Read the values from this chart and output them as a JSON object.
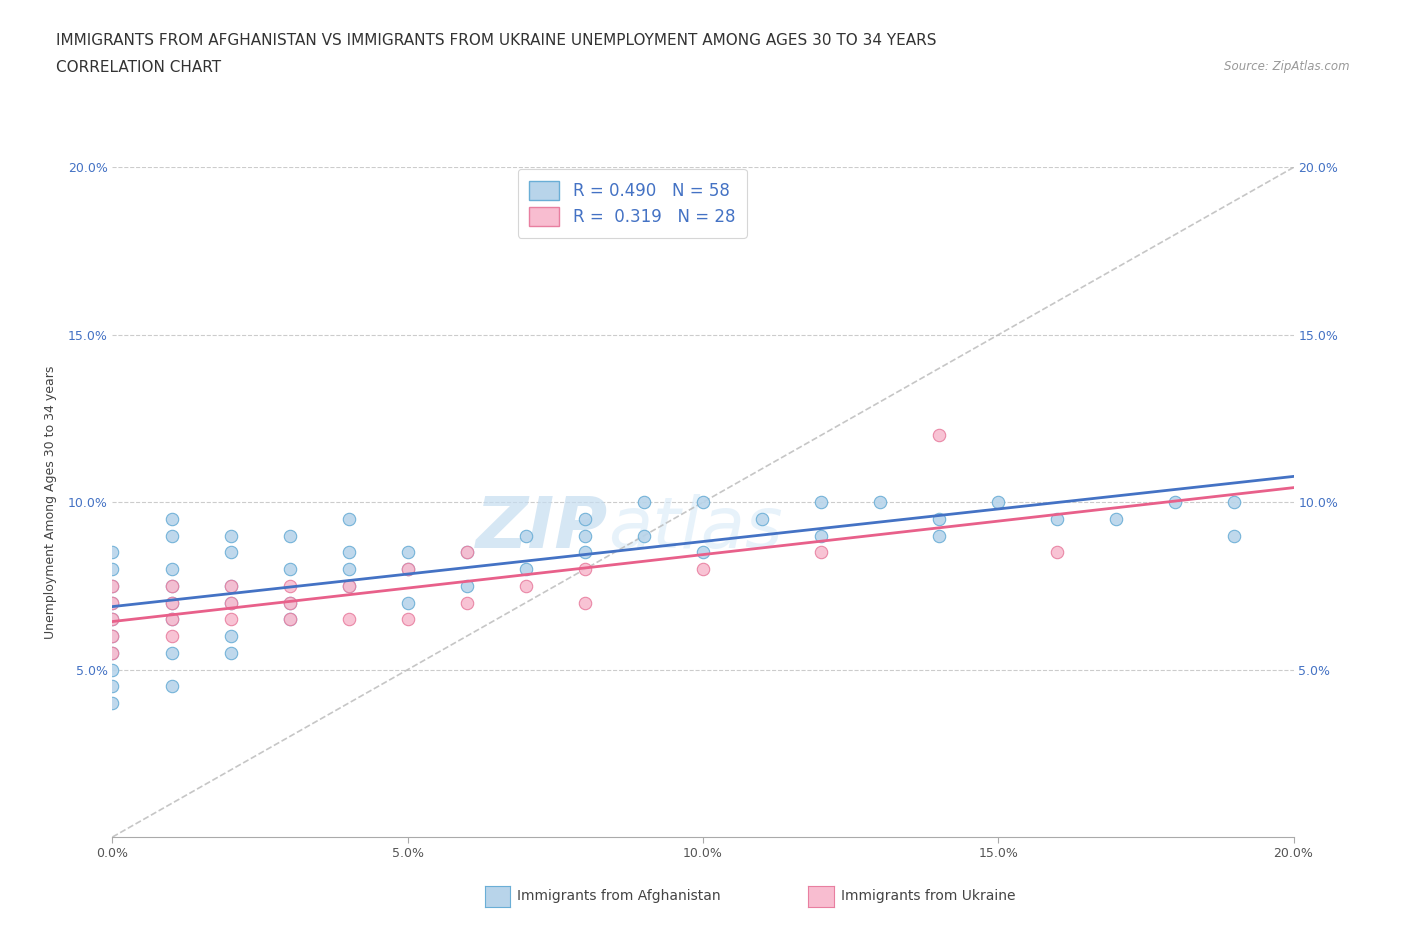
{
  "title_line1": "IMMIGRANTS FROM AFGHANISTAN VS IMMIGRANTS FROM UKRAINE UNEMPLOYMENT AMONG AGES 30 TO 34 YEARS",
  "title_line2": "CORRELATION CHART",
  "source_text": "Source: ZipAtlas.com",
  "ylabel": "Unemployment Among Ages 30 to 34 years",
  "xlim": [
    0.0,
    0.2
  ],
  "ylim": [
    0.0,
    0.2
  ],
  "xticks": [
    0.0,
    0.05,
    0.1,
    0.15,
    0.2
  ],
  "yticks": [
    0.05,
    0.1,
    0.15,
    0.2
  ],
  "xtick_labels": [
    "0.0%",
    "5.0%",
    "10.0%",
    "15.0%",
    "20.0%"
  ],
  "ytick_labels": [
    "5.0%",
    "10.0%",
    "15.0%",
    "20.0%"
  ],
  "afghanistan_color": "#b8d4ea",
  "ukraine_color": "#f8bdd0",
  "afghanistan_edge": "#6aaed6",
  "ukraine_edge": "#e87fa0",
  "trend_afghanistan_color": "#4472c4",
  "trend_ukraine_color": "#e8608a",
  "diagonal_color": "#b8b8b8",
  "R_afghanistan": 0.49,
  "N_afghanistan": 58,
  "R_ukraine": 0.319,
  "N_ukraine": 28,
  "watermark_zip": "ZIP",
  "watermark_atlas": "atlas",
  "afghanistan_x": [
    0.0,
    0.0,
    0.0,
    0.0,
    0.0,
    0.0,
    0.0,
    0.0,
    0.0,
    0.0,
    0.01,
    0.01,
    0.01,
    0.01,
    0.01,
    0.01,
    0.01,
    0.01,
    0.02,
    0.02,
    0.02,
    0.02,
    0.02,
    0.02,
    0.03,
    0.03,
    0.03,
    0.03,
    0.04,
    0.04,
    0.04,
    0.04,
    0.05,
    0.05,
    0.05,
    0.06,
    0.06,
    0.07,
    0.07,
    0.08,
    0.08,
    0.08,
    0.09,
    0.09,
    0.1,
    0.1,
    0.11,
    0.12,
    0.12,
    0.13,
    0.14,
    0.14,
    0.15,
    0.16,
    0.17,
    0.18,
    0.19,
    0.19
  ],
  "afghanistan_y": [
    0.04,
    0.045,
    0.05,
    0.055,
    0.06,
    0.065,
    0.07,
    0.075,
    0.08,
    0.085,
    0.045,
    0.055,
    0.065,
    0.07,
    0.075,
    0.08,
    0.09,
    0.095,
    0.055,
    0.06,
    0.07,
    0.075,
    0.085,
    0.09,
    0.065,
    0.07,
    0.08,
    0.09,
    0.075,
    0.08,
    0.085,
    0.095,
    0.07,
    0.08,
    0.085,
    0.075,
    0.085,
    0.08,
    0.09,
    0.085,
    0.09,
    0.095,
    0.09,
    0.1,
    0.085,
    0.1,
    0.095,
    0.09,
    0.1,
    0.1,
    0.09,
    0.095,
    0.1,
    0.095,
    0.095,
    0.1,
    0.09,
    0.1
  ],
  "ukraine_x": [
    0.0,
    0.0,
    0.0,
    0.0,
    0.0,
    0.01,
    0.01,
    0.01,
    0.01,
    0.02,
    0.02,
    0.02,
    0.03,
    0.03,
    0.03,
    0.04,
    0.04,
    0.05,
    0.05,
    0.06,
    0.06,
    0.07,
    0.08,
    0.08,
    0.1,
    0.12,
    0.14,
    0.16
  ],
  "ukraine_y": [
    0.055,
    0.06,
    0.065,
    0.07,
    0.075,
    0.06,
    0.065,
    0.07,
    0.075,
    0.065,
    0.07,
    0.075,
    0.065,
    0.07,
    0.075,
    0.065,
    0.075,
    0.065,
    0.08,
    0.07,
    0.085,
    0.075,
    0.07,
    0.08,
    0.08,
    0.085,
    0.12,
    0.085
  ],
  "title_fontsize": 11,
  "subtitle_fontsize": 11,
  "axis_label_fontsize": 9,
  "tick_fontsize": 9,
  "legend_fontsize": 12
}
